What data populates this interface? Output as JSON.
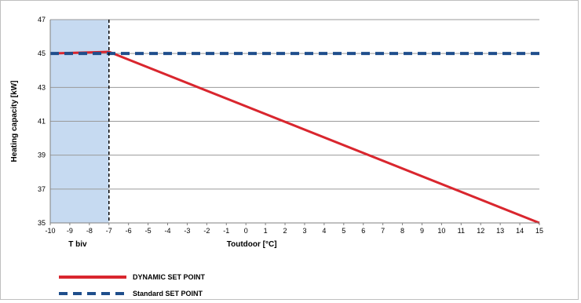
{
  "chart_data": {
    "type": "line",
    "xlabel": "Toutdoor [°C]",
    "ylabel": "Heating capacity [kW]",
    "xlim": [
      -10,
      15
    ],
    "ylim": [
      35,
      47
    ],
    "xticks": [
      -10,
      -9,
      -8,
      -7,
      -6,
      -5,
      -4,
      -3,
      -2,
      -1,
      0,
      1,
      2,
      3,
      4,
      5,
      6,
      7,
      8,
      9,
      10,
      11,
      12,
      13,
      14,
      15
    ],
    "yticks": [
      35,
      37,
      39,
      41,
      43,
      45,
      47
    ],
    "grid": "horizontal",
    "shaded_region": {
      "x_from": -10,
      "x_to": -7,
      "color": "#c6daf1",
      "label": "T biv"
    },
    "vertical_marker": {
      "x": -7,
      "style": "dashed",
      "color": "#000000"
    },
    "series": [
      {
        "name": "DYNAMIC SET POINT",
        "style": "solid",
        "color": "#d9262e",
        "x": [
          -10,
          -7,
          15
        ],
        "y": [
          45,
          45.1,
          35
        ]
      },
      {
        "name": "Standard SET POINT",
        "style": "dashed",
        "color": "#1f4e8c",
        "x": [
          -10,
          15
        ],
        "y": [
          45,
          45
        ]
      }
    ],
    "legend_position": "bottom-left"
  }
}
